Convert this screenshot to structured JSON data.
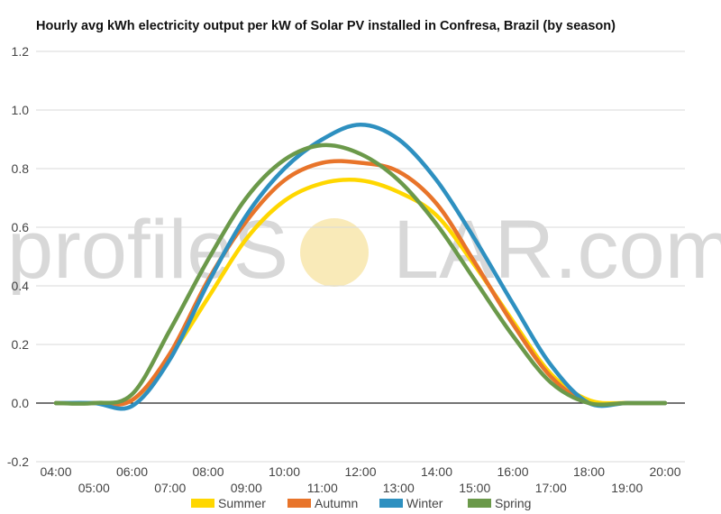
{
  "chart_data": {
    "type": "line",
    "title": "Hourly avg kWh electricity output per kW of Solar PV installed in Confresa, Brazil (by season)",
    "xlabel": "",
    "ylabel": "",
    "ylim": [
      -0.2,
      1.2
    ],
    "yticks": [
      "-0.2",
      "0.0",
      "0.2",
      "0.4",
      "0.6",
      "0.8",
      "1.0",
      "1.2"
    ],
    "x": [
      "04:00",
      "05:00",
      "06:00",
      "07:00",
      "08:00",
      "09:00",
      "10:00",
      "11:00",
      "12:00",
      "13:00",
      "14:00",
      "15:00",
      "16:00",
      "17:00",
      "18:00",
      "19:00",
      "20:00"
    ],
    "grid": true,
    "legend_position": "bottom",
    "series": [
      {
        "name": "Summer",
        "color": "#FFD700",
        "values": [
          0,
          0,
          0.01,
          0.16,
          0.36,
          0.56,
          0.69,
          0.75,
          0.76,
          0.72,
          0.64,
          0.47,
          0.28,
          0.1,
          0.01,
          0,
          0
        ]
      },
      {
        "name": "Autumn",
        "color": "#E8742A",
        "values": [
          0,
          0,
          0.01,
          0.17,
          0.42,
          0.62,
          0.76,
          0.82,
          0.82,
          0.79,
          0.68,
          0.48,
          0.27,
          0.09,
          0,
          0,
          0
        ]
      },
      {
        "name": "Winter",
        "color": "#2E90C0",
        "values": [
          0,
          0,
          -0.01,
          0.15,
          0.41,
          0.64,
          0.8,
          0.9,
          0.95,
          0.9,
          0.76,
          0.56,
          0.34,
          0.13,
          0,
          0,
          0
        ]
      },
      {
        "name": "Spring",
        "color": "#6B994A",
        "values": [
          0,
          0,
          0.03,
          0.25,
          0.49,
          0.7,
          0.83,
          0.88,
          0.85,
          0.76,
          0.61,
          0.42,
          0.23,
          0.07,
          0,
          0,
          0
        ]
      }
    ]
  },
  "watermark": {
    "text_left": "profileS",
    "text_right": "LAR.com",
    "sun_color": "#F7E3A0"
  }
}
